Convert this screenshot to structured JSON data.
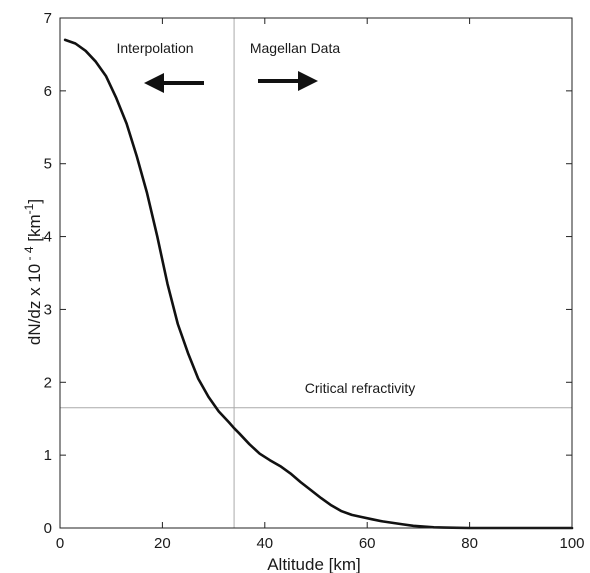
{
  "chart_data": {
    "type": "line",
    "title": "",
    "xlabel": "Altitude [km]",
    "ylabel": {
      "prefix": "dN/dz x 10",
      "exponent": " - 4",
      "unit_open": " [km",
      "unit_exponent": "-1",
      "unit_close": "]"
    },
    "xlim": [
      0,
      100
    ],
    "ylim": [
      0,
      7
    ],
    "xticks": [
      0,
      20,
      40,
      60,
      80,
      100
    ],
    "yticks": [
      0,
      1,
      2,
      3,
      4,
      5,
      6,
      7
    ],
    "grid": false,
    "series": [
      {
        "color": "#111111",
        "x": [
          1,
          3,
          5,
          7,
          9,
          11,
          13,
          15,
          17,
          19,
          21,
          23,
          25,
          27,
          29,
          31,
          33,
          34,
          35,
          37,
          39,
          41,
          43,
          45,
          47,
          49,
          51,
          53,
          55,
          57,
          59,
          61,
          63,
          65,
          67,
          69,
          71,
          73,
          75,
          80,
          85,
          90,
          95,
          100
        ],
        "y": [
          6.7,
          6.65,
          6.55,
          6.4,
          6.2,
          5.9,
          5.55,
          5.1,
          4.6,
          4.0,
          3.35,
          2.8,
          2.4,
          2.05,
          1.8,
          1.6,
          1.45,
          1.37,
          1.3,
          1.15,
          1.02,
          0.93,
          0.85,
          0.75,
          0.63,
          0.52,
          0.41,
          0.31,
          0.23,
          0.18,
          0.15,
          0.12,
          0.09,
          0.07,
          0.05,
          0.03,
          0.02,
          0.01,
          0.005,
          0.0,
          0.0,
          0.0,
          0.0,
          0.0
        ]
      }
    ],
    "reference_lines": {
      "vertical_x": 34,
      "horizontal_y": 1.65,
      "color": "#aaaaaa"
    },
    "annotations": {
      "left_label": "Interpolation",
      "right_label": "Magellan Data",
      "critical_label": "Critical refractivity"
    }
  }
}
